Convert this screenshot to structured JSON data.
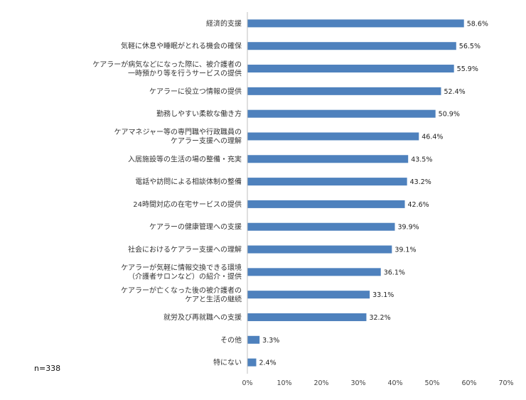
{
  "sample_note": "n=338",
  "colors": {
    "bar": "#4e81bd",
    "axis": "#bfbfbf",
    "text": "#333333"
  },
  "chart_data": {
    "type": "bar",
    "orientation": "horizontal",
    "categories": [
      [
        "経済的支援"
      ],
      [
        "気軽に休息や睡眠がとれる機会の確保"
      ],
      [
        "ケアラーが病気などになった際に、被介護者の",
        "一時預かり等を行うサービスの提供"
      ],
      [
        "ケアラーに役立つ情報の提供"
      ],
      [
        "勤務しやすい柔軟な働き方"
      ],
      [
        "ケアマネジャー等の専門職や行政職員の",
        "ケアラー支援への理解"
      ],
      [
        "入居施設等の生活の場の整備・充実"
      ],
      [
        "電話や訪問による相談体制の整備"
      ],
      [
        "24時間対応の在宅サービスの提供"
      ],
      [
        "ケアラーの健康管理への支援"
      ],
      [
        "社会におけるケアラー支援への理解"
      ],
      [
        "ケアラーが気軽に情報交換できる環境",
        "（介護者サロンなど）の紹介・提供"
      ],
      [
        "ケアラーが亡くなった後の被介護者の",
        "ケアと生活の継続"
      ],
      [
        "就労及び再就職への支援"
      ],
      [
        "その他"
      ],
      [
        "特にない"
      ]
    ],
    "values": [
      58.6,
      56.5,
      55.9,
      52.4,
      50.9,
      46.4,
      43.5,
      43.2,
      42.6,
      39.9,
      39.1,
      36.1,
      33.1,
      32.2,
      3.3,
      2.4
    ],
    "value_labels": [
      "58.6%",
      "56.5%",
      "55.9%",
      "52.4%",
      "50.9%",
      "46.4%",
      "43.5%",
      "43.2%",
      "42.6%",
      "39.9%",
      "39.1%",
      "36.1%",
      "33.1%",
      "32.2%",
      "3.3%",
      "2.4%"
    ],
    "xlim": [
      0,
      70
    ],
    "xticks": [
      0,
      10,
      20,
      30,
      40,
      50,
      60,
      70
    ],
    "xtick_labels": [
      "0%",
      "10%",
      "20%",
      "30%",
      "40%",
      "50%",
      "60%",
      "70%"
    ],
    "grid": false,
    "legend": "none"
  }
}
